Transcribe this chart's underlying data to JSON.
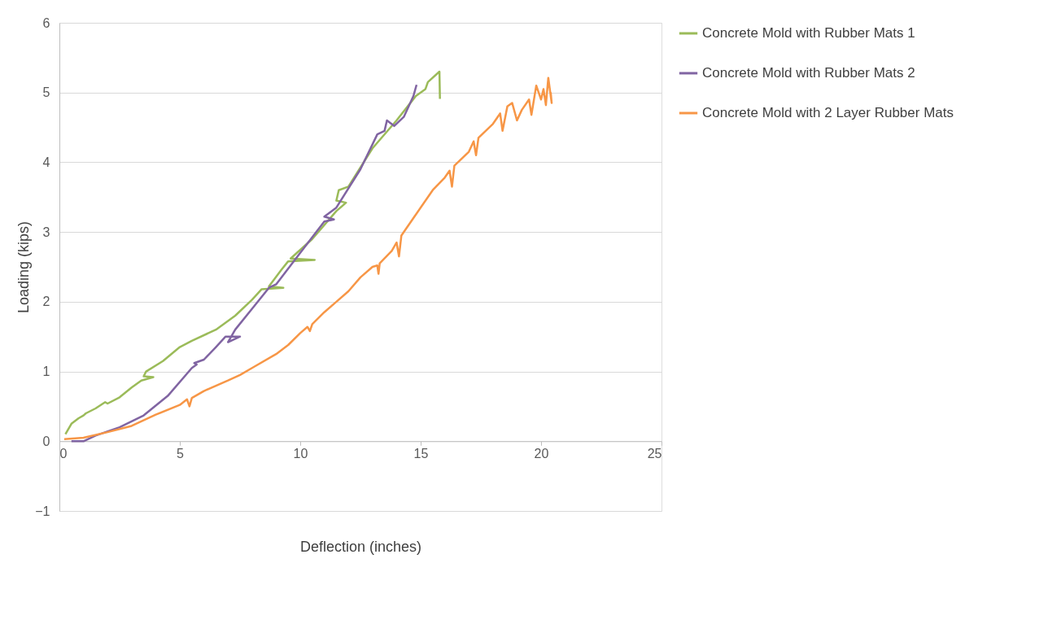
{
  "chart_data": {
    "type": "line",
    "xlabel": "Deflection (inches)",
    "ylabel": "Loading (kips)",
    "xlim": [
      0,
      25
    ],
    "xticks": [
      0,
      5,
      10,
      15,
      20,
      25
    ],
    "ylim": [
      -1,
      6
    ],
    "yticks": [
      -1,
      0,
      1,
      2,
      3,
      4,
      5,
      6
    ],
    "grid": "y",
    "legend": "right",
    "marker": "none",
    "line_style": "solid",
    "series": [
      {
        "name": "Concrete Mold with Rubber Mats 1",
        "color": "#9bbb59",
        "x": [
          0.25,
          0.5,
          0.8,
          1.0,
          1.1,
          1.5,
          1.9,
          2.0,
          2.5,
          3.0,
          3.4,
          3.9,
          3.5,
          3.6,
          4.3,
          5.0,
          5.5,
          6.5,
          7.3,
          8.0,
          8.4,
          9.3,
          8.7,
          9.2,
          9.5,
          10.6,
          9.6,
          10.5,
          11.5,
          11.9,
          11.5,
          11.6,
          12.0,
          13.0,
          14.0,
          14.8,
          15.2,
          15.3,
          15.78,
          15.8
        ],
        "values": [
          0.1,
          0.25,
          0.33,
          0.37,
          0.4,
          0.47,
          0.56,
          0.54,
          0.63,
          0.77,
          0.87,
          0.92,
          0.93,
          1.0,
          1.15,
          1.35,
          1.44,
          1.6,
          1.8,
          2.03,
          2.18,
          2.2,
          2.22,
          2.45,
          2.58,
          2.6,
          2.62,
          2.9,
          3.3,
          3.42,
          3.45,
          3.6,
          3.65,
          4.2,
          4.6,
          4.95,
          5.05,
          5.15,
          5.3,
          4.91
        ]
      },
      {
        "name": "Concrete Mold with Rubber Mats 2",
        "color": "#8064a2",
        "x": [
          0.5,
          1.0,
          1.5,
          2.5,
          3.5,
          4.5,
          5.5,
          5.7,
          5.6,
          6.0,
          6.5,
          6.9,
          7.5,
          7.0,
          7.3,
          8.0,
          8.7,
          9.0,
          10.0,
          11.0,
          11.4,
          11.0,
          11.5,
          12.5,
          13.2,
          13.5,
          13.6,
          13.9,
          14.3,
          14.7,
          14.83
        ],
        "values": [
          0.0,
          0.0,
          0.08,
          0.2,
          0.37,
          0.65,
          1.05,
          1.1,
          1.12,
          1.17,
          1.35,
          1.5,
          1.5,
          1.42,
          1.6,
          1.9,
          2.2,
          2.25,
          2.7,
          3.15,
          3.18,
          3.22,
          3.35,
          3.9,
          4.4,
          4.45,
          4.6,
          4.52,
          4.65,
          4.95,
          5.11
        ]
      },
      {
        "name": "Concrete Mold with 2 Layer Rubber Mats",
        "color": "#f79646",
        "x": [
          0.2,
          1.0,
          2.0,
          3.0,
          4.0,
          5.0,
          5.3,
          5.4,
          5.5,
          6.0,
          7.0,
          7.5,
          8.0,
          9.0,
          9.5,
          10.0,
          10.3,
          10.4,
          10.5,
          11.0,
          11.5,
          12.0,
          12.5,
          13.0,
          13.2,
          13.25,
          13.3,
          13.8,
          14.0,
          14.1,
          14.2,
          14.7,
          15.5,
          16.0,
          16.2,
          16.3,
          16.4,
          17.0,
          17.2,
          17.3,
          17.4,
          18.0,
          18.3,
          18.4,
          18.6,
          18.8,
          19.0,
          19.2,
          19.5,
          19.6,
          19.8,
          20.0,
          20.1,
          20.2,
          20.3,
          20.44,
          20.4
        ],
        "values": [
          0.03,
          0.05,
          0.13,
          0.22,
          0.38,
          0.52,
          0.6,
          0.5,
          0.62,
          0.72,
          0.87,
          0.95,
          1.05,
          1.25,
          1.38,
          1.55,
          1.64,
          1.58,
          1.68,
          1.85,
          2.0,
          2.15,
          2.35,
          2.5,
          2.52,
          2.4,
          2.55,
          2.73,
          2.85,
          2.65,
          2.95,
          3.2,
          3.6,
          3.78,
          3.88,
          3.65,
          3.95,
          4.15,
          4.3,
          4.1,
          4.35,
          4.55,
          4.7,
          4.45,
          4.8,
          4.85,
          4.6,
          4.75,
          4.9,
          4.68,
          5.1,
          4.9,
          5.05,
          4.82,
          5.21,
          4.85,
          5.0
        ]
      }
    ]
  }
}
